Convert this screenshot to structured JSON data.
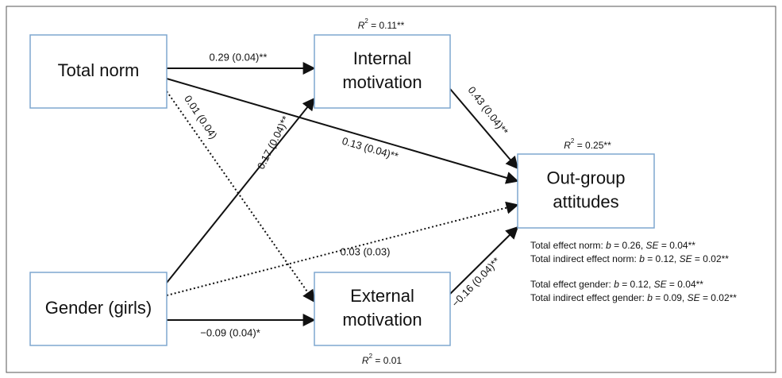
{
  "nodes": [
    {
      "label": [
        "Total norm"
      ]
    },
    {
      "label": [
        "Internal",
        "motivation"
      ]
    },
    {
      "label": [
        "Out-group",
        "attitudes"
      ]
    },
    {
      "label": [
        "Gender (girls)"
      ]
    },
    {
      "label": [
        "External",
        "motivation"
      ]
    }
  ],
  "r_squared": [
    [
      "R",
      "2",
      " = 0.11**"
    ],
    [
      "R",
      "2",
      " = 0.25**"
    ],
    [
      "R",
      "2",
      " = 0.01"
    ]
  ],
  "edges": [
    {
      "label": "0.29 (0.04)**"
    },
    {
      "label": "0.13 (0.04)**"
    },
    {
      "label": "0.01 (0.04)"
    },
    {
      "label": "0.17 (0.04)**"
    },
    {
      "label": "0.03 (0.03)"
    },
    {
      "label": "−0.09 (0.04)*"
    },
    {
      "label": "0.43 (0.04)**"
    },
    {
      "label": "−0.16 (0.04)**"
    }
  ],
  "notes": [
    [
      "Total effect norm: ",
      "b",
      " = 0.26, ",
      "SE",
      " = 0.04**"
    ],
    [
      "Total indirect effect norm: ",
      "b",
      " = 0.12, ",
      "SE",
      " = 0.02**"
    ],
    [
      "Total effect gender: ",
      "b",
      " = 0.12, ",
      "SE",
      " = 0.04**"
    ],
    [
      "Total indirect effect gender: ",
      "b",
      " = 0.09, ",
      "SE",
      " = 0.02**"
    ]
  ]
}
